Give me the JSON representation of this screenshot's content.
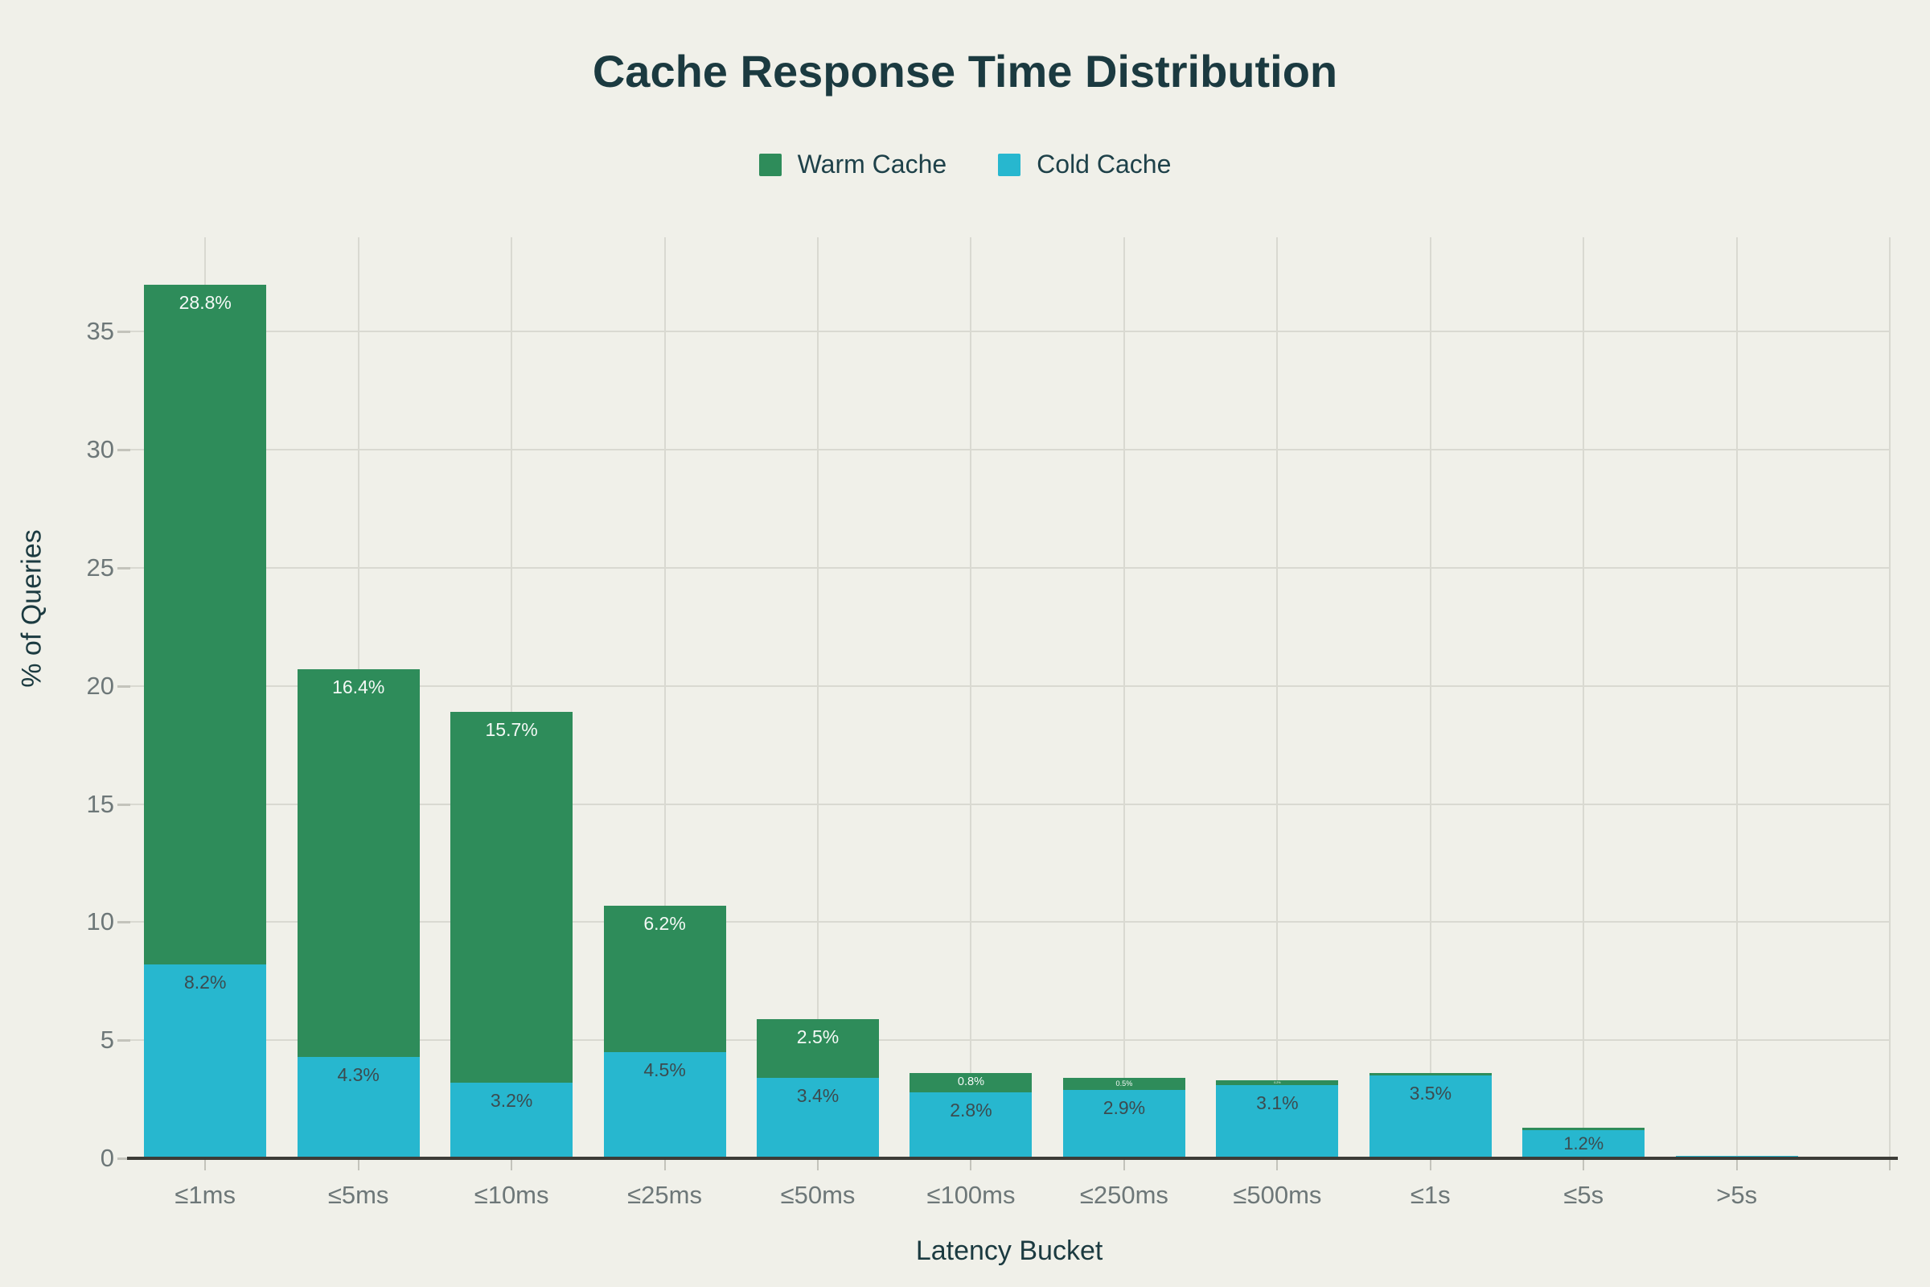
{
  "title": "Cache Response Time Distribution",
  "legend": {
    "items": [
      {
        "label": "Warm Cache",
        "color_key": "warm"
      },
      {
        "label": "Cold Cache",
        "color_key": "cold"
      }
    ]
  },
  "axes": {
    "x_title": "Latency Bucket",
    "y_title": "% of Queries",
    "y_tick_labels": [
      "0",
      "5",
      "10",
      "15",
      "20",
      "25",
      "30",
      "35"
    ]
  },
  "colors": {
    "background": "#f0f0e9",
    "warm": "#2e8c5a",
    "cold": "#27b7cf",
    "title_text": "#1b3a40",
    "axis_title_text": "#1b3a40",
    "legend_text": "#1e4149",
    "tick_text": "#6d7778",
    "grid": "#d9d9d1",
    "axis_line": "#3c3c37",
    "tick_mark": "#c3c3bb",
    "label_on_warm": "#f4f9f6",
    "label_on_cold": "#3c4b4f"
  },
  "chart_data": {
    "type": "bar",
    "stacked": true,
    "title": "Cache Response Time Distribution",
    "xlabel": "Latency Bucket",
    "ylabel": "% of Queries",
    "categories": [
      "≤1ms",
      "≤5ms",
      "≤10ms",
      "≤25ms",
      "≤50ms",
      "≤100ms",
      "≤250ms",
      "≤500ms",
      "≤1s",
      "≤5s",
      ">5s"
    ],
    "series": [
      {
        "name": "Warm Cache",
        "stack": "top",
        "color_key": "warm",
        "values": [
          28.8,
          16.4,
          15.7,
          6.2,
          2.5,
          0.8,
          0.5,
          0.2,
          0.1,
          0.1,
          0.0
        ],
        "labels": [
          "28.8%",
          "16.4%",
          "15.7%",
          "6.2%",
          "2.5%",
          "0.8%",
          "0.5%",
          "0.2%",
          "",
          "",
          ""
        ]
      },
      {
        "name": "Cold Cache",
        "stack": "bottom",
        "color_key": "cold",
        "values": [
          8.2,
          4.3,
          3.2,
          4.5,
          3.4,
          2.8,
          2.9,
          3.1,
          3.5,
          1.2,
          0.1
        ],
        "labels": [
          "8.2%",
          "4.3%",
          "3.2%",
          "4.5%",
          "3.4%",
          "2.8%",
          "2.9%",
          "3.1%",
          "3.5%",
          "1.2%",
          ""
        ]
      }
    ],
    "yticks": [
      0,
      5,
      10,
      15,
      20,
      25,
      30,
      35
    ],
    "ylim": [
      0,
      39
    ],
    "grid": true,
    "legend_position": "top"
  }
}
